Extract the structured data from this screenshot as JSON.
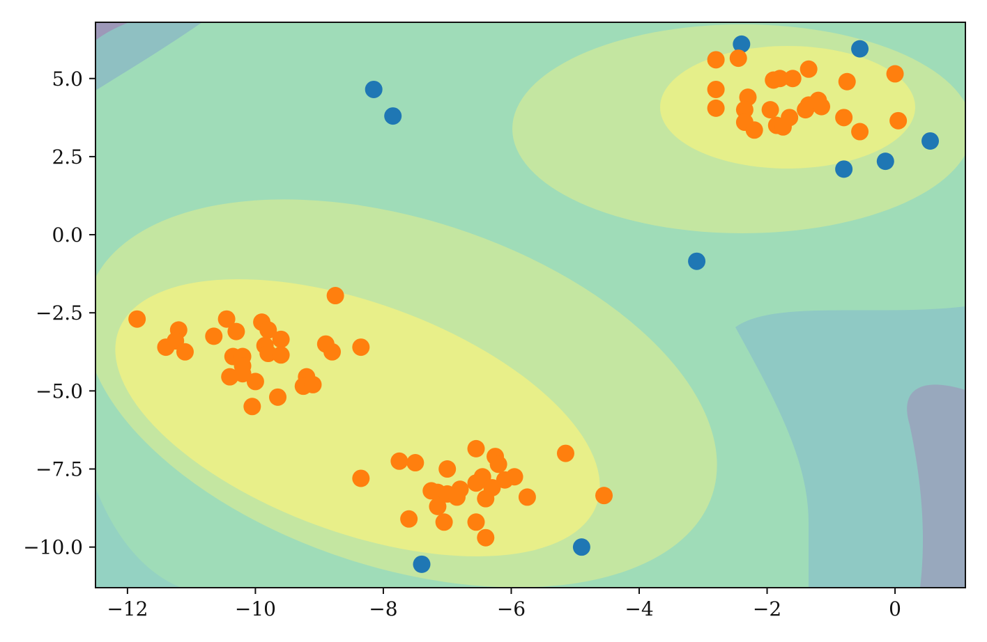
{
  "chart_data": {
    "type": "scatter",
    "title": "",
    "xlabel": "",
    "ylabel": "",
    "xlim": [
      -12.5,
      1.1
    ],
    "ylim": [
      -11.3,
      6.8
    ],
    "grid": false,
    "legend": "none",
    "x_ticks": [
      {
        "value": -12,
        "label": "−12"
      },
      {
        "value": -10,
        "label": "−10"
      },
      {
        "value": -8,
        "label": "−8"
      },
      {
        "value": -6,
        "label": "−6"
      },
      {
        "value": -4,
        "label": "−4"
      },
      {
        "value": -2,
        "label": "−2"
      },
      {
        "value": 0,
        "label": "0"
      }
    ],
    "y_ticks": [
      {
        "value": 5.0,
        "label": "5.0"
      },
      {
        "value": 2.5,
        "label": "2.5"
      },
      {
        "value": 0.0,
        "label": "0.0"
      },
      {
        "value": -2.5,
        "label": "−2.5"
      },
      {
        "value": -5.0,
        "label": "−5.0"
      },
      {
        "value": -7.5,
        "label": "−7.5"
      },
      {
        "value": -10.0,
        "label": "−10.0"
      }
    ],
    "background": {
      "type": "filled-contour",
      "description_levels": 7,
      "cluster_centers": [
        {
          "x": -1.6,
          "y": 4.1
        },
        {
          "x": -8.2,
          "y": -5.5
        }
      ]
    },
    "series": [
      {
        "name": "blue",
        "color": "#1f77b4",
        "points": [
          {
            "x": -2.4,
            "y": 6.1
          },
          {
            "x": -0.55,
            "y": 5.95
          },
          {
            "x": -8.15,
            "y": 4.65
          },
          {
            "x": -7.85,
            "y": 3.8
          },
          {
            "x": 0.55,
            "y": 3.0
          },
          {
            "x": -0.15,
            "y": 2.35
          },
          {
            "x": -0.8,
            "y": 2.1
          },
          {
            "x": -3.1,
            "y": -0.85
          },
          {
            "x": -4.9,
            "y": -10.0
          },
          {
            "x": -7.4,
            "y": -10.55
          }
        ]
      },
      {
        "name": "orange",
        "color": "#ff7f0e",
        "points": [
          {
            "x": -2.8,
            "y": 5.6
          },
          {
            "x": -2.45,
            "y": 5.65
          },
          {
            "x": -1.35,
            "y": 5.3
          },
          {
            "x": 0.0,
            "y": 5.15
          },
          {
            "x": -1.9,
            "y": 4.95
          },
          {
            "x": -1.8,
            "y": 5.0
          },
          {
            "x": -1.6,
            "y": 5.0
          },
          {
            "x": -0.75,
            "y": 4.9
          },
          {
            "x": -2.8,
            "y": 4.65
          },
          {
            "x": -2.3,
            "y": 4.4
          },
          {
            "x": -1.2,
            "y": 4.3
          },
          {
            "x": -1.35,
            "y": 4.15
          },
          {
            "x": -1.15,
            "y": 4.1
          },
          {
            "x": -2.8,
            "y": 4.05
          },
          {
            "x": -2.35,
            "y": 4.0
          },
          {
            "x": -1.95,
            "y": 4.0
          },
          {
            "x": -1.4,
            "y": 4.0
          },
          {
            "x": -1.65,
            "y": 3.75
          },
          {
            "x": -0.8,
            "y": 3.75
          },
          {
            "x": 0.05,
            "y": 3.65
          },
          {
            "x": -2.35,
            "y": 3.6
          },
          {
            "x": -1.85,
            "y": 3.5
          },
          {
            "x": -1.75,
            "y": 3.45
          },
          {
            "x": -2.2,
            "y": 3.35
          },
          {
            "x": -0.55,
            "y": 3.3
          },
          {
            "x": -8.75,
            "y": -1.95
          },
          {
            "x": -11.85,
            "y": -2.7
          },
          {
            "x": -10.45,
            "y": -2.7
          },
          {
            "x": -9.9,
            "y": -2.8
          },
          {
            "x": -11.2,
            "y": -3.05
          },
          {
            "x": -10.3,
            "y": -3.1
          },
          {
            "x": -9.8,
            "y": -3.05
          },
          {
            "x": -10.65,
            "y": -3.25
          },
          {
            "x": -11.25,
            "y": -3.4
          },
          {
            "x": -9.6,
            "y": -3.35
          },
          {
            "x": -9.85,
            "y": -3.55
          },
          {
            "x": -11.4,
            "y": -3.6
          },
          {
            "x": -8.9,
            "y": -3.5
          },
          {
            "x": -8.35,
            "y": -3.6
          },
          {
            "x": -11.1,
            "y": -3.75
          },
          {
            "x": -8.8,
            "y": -3.75
          },
          {
            "x": -9.8,
            "y": -3.8
          },
          {
            "x": -10.35,
            "y": -3.9
          },
          {
            "x": -10.2,
            "y": -3.9
          },
          {
            "x": -9.6,
            "y": -3.85
          },
          {
            "x": -10.2,
            "y": -4.2
          },
          {
            "x": -10.2,
            "y": -4.45
          },
          {
            "x": -10.4,
            "y": -4.55
          },
          {
            "x": -10.0,
            "y": -4.7
          },
          {
            "x": -9.2,
            "y": -4.55
          },
          {
            "x": -9.25,
            "y": -4.85
          },
          {
            "x": -9.1,
            "y": -4.8
          },
          {
            "x": -9.65,
            "y": -5.2
          },
          {
            "x": -10.05,
            "y": -5.5
          },
          {
            "x": -6.55,
            "y": -6.85
          },
          {
            "x": -5.15,
            "y": -7.0
          },
          {
            "x": -6.25,
            "y": -7.1
          },
          {
            "x": -7.75,
            "y": -7.25
          },
          {
            "x": -7.5,
            "y": -7.3
          },
          {
            "x": -6.2,
            "y": -7.35
          },
          {
            "x": -7.0,
            "y": -7.5
          },
          {
            "x": -6.45,
            "y": -7.75
          },
          {
            "x": -8.35,
            "y": -7.8
          },
          {
            "x": -5.95,
            "y": -7.75
          },
          {
            "x": -6.1,
            "y": -7.85
          },
          {
            "x": -6.55,
            "y": -7.95
          },
          {
            "x": -6.3,
            "y": -8.1
          },
          {
            "x": -6.8,
            "y": -8.15
          },
          {
            "x": -7.25,
            "y": -8.2
          },
          {
            "x": -7.15,
            "y": -8.25
          },
          {
            "x": -7.0,
            "y": -8.3
          },
          {
            "x": -6.85,
            "y": -8.4
          },
          {
            "x": -4.55,
            "y": -8.35
          },
          {
            "x": -5.75,
            "y": -8.4
          },
          {
            "x": -6.4,
            "y": -8.45
          },
          {
            "x": -7.15,
            "y": -8.7
          },
          {
            "x": -7.6,
            "y": -9.1
          },
          {
            "x": -7.05,
            "y": -9.2
          },
          {
            "x": -6.55,
            "y": -9.2
          },
          {
            "x": -6.4,
            "y": -9.7
          }
        ]
      }
    ]
  }
}
